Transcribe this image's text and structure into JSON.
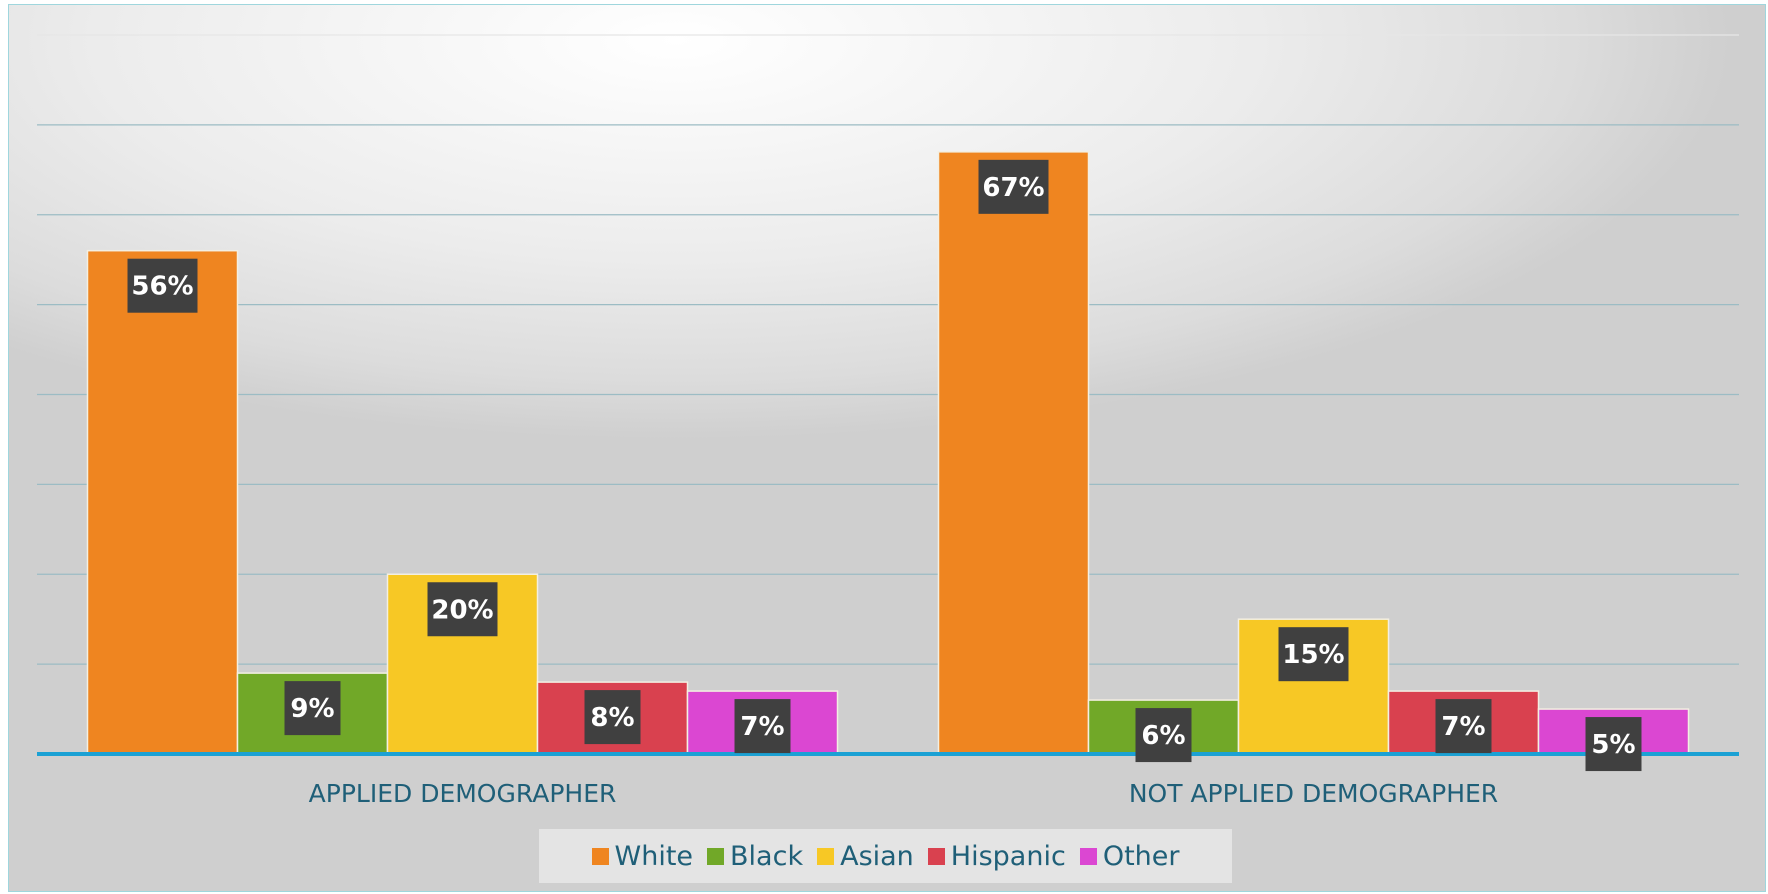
{
  "chart_data": {
    "type": "bar",
    "categories": [
      "APPLIED DEMOGRAPHER",
      "NOT APPLIED DEMOGRAPHER"
    ],
    "series": [
      {
        "name": "White",
        "values": [
          56,
          67
        ],
        "labels": [
          "56%",
          "67%"
        ],
        "color": "#ef8520"
      },
      {
        "name": "Black",
        "values": [
          9,
          6
        ],
        "labels": [
          "9%",
          "6%"
        ],
        "color": "#71a828"
      },
      {
        "name": "Asian",
        "values": [
          20,
          15
        ],
        "labels": [
          "20%",
          "15%"
        ],
        "color": "#f7c825"
      },
      {
        "name": "Hispanic",
        "values": [
          8,
          7
        ],
        "labels": [
          "8%",
          "7%"
        ],
        "color": "#d9414f"
      },
      {
        "name": "Other",
        "values": [
          7,
          5
        ],
        "labels": [
          "7%",
          "5%"
        ],
        "color": "#db47d2"
      }
    ],
    "ylim": [
      0,
      80
    ],
    "grid": true,
    "legend_position": "bottom"
  }
}
